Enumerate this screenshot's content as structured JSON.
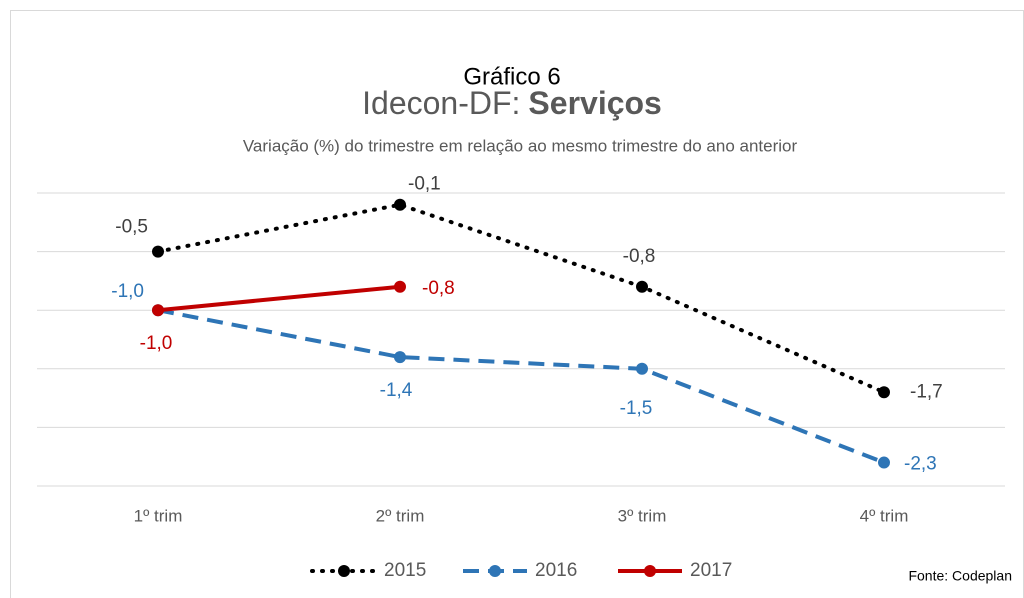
{
  "chart_data": {
    "type": "line",
    "supertitle": "Gráfico 6",
    "title": "Idecon-DF:",
    "title_bold": "Serviços",
    "subtitle": "Variação (%) do trimestre em relação ao mesmo trimestre do ano anterior",
    "categories": [
      "1º trim",
      "2º trim",
      "3º trim",
      "4º trim"
    ],
    "ylim": [
      -2.5,
      0
    ],
    "yticks": [
      0,
      -0.5,
      -1,
      -1.5,
      -2,
      -2.5
    ],
    "grid": true,
    "legend": "bottom",
    "source": "Fonte: Codeplan",
    "series": [
      {
        "name": "2015",
        "color": "#000000",
        "style": "dotted",
        "values": [
          -0.5,
          -0.1,
          -0.8,
          -1.7
        ],
        "value_labels": [
          "-0,5",
          "-0,1",
          "-0,8",
          "-1,7"
        ]
      },
      {
        "name": "2016",
        "color": "#2E75B6",
        "style": "dashed",
        "values": [
          -1.0,
          -1.4,
          -1.5,
          -2.3
        ],
        "value_labels": [
          "-1,0",
          "-1,4",
          "-1,5",
          "-2,3"
        ]
      },
      {
        "name": "2017",
        "color": "#C00000",
        "style": "solid",
        "values": [
          -1.0,
          -0.8,
          null,
          null
        ],
        "value_labels": [
          "-1,0",
          "-0,8",
          null,
          null
        ]
      }
    ]
  }
}
